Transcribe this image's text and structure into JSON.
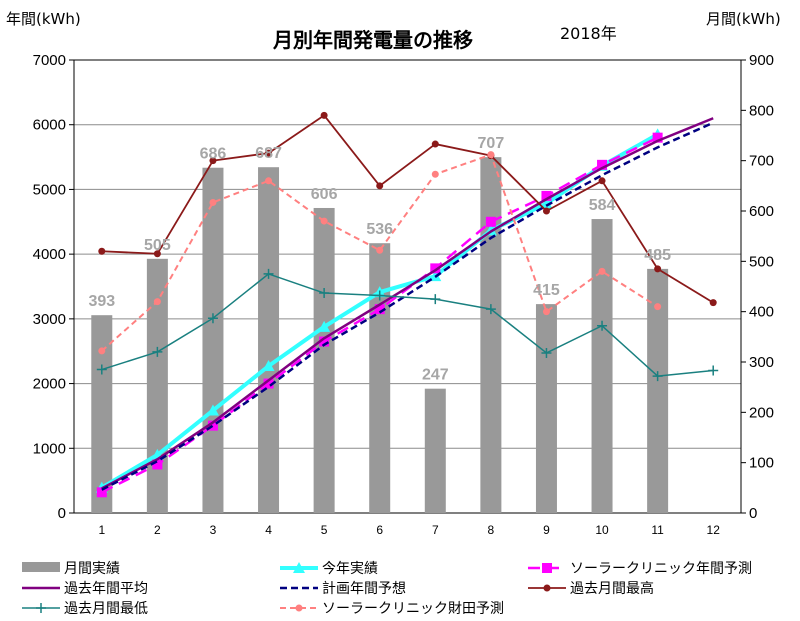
{
  "chart_data": {
    "type": "bar",
    "title": "月別年間発電量の推移",
    "subtitle": "2018年",
    "ylabel_left": "年間(kWh)",
    "ylabel_right": "月間(kWh)",
    "categories": [
      "1",
      "2",
      "3",
      "4",
      "5",
      "6",
      "7",
      "8",
      "9",
      "10",
      "11",
      "12"
    ],
    "y_left": {
      "min": 0,
      "max": 7000,
      "step": 1000
    },
    "y_right": {
      "min": 0,
      "max": 900,
      "step": 100
    },
    "grid": true,
    "legend_position": "bottom",
    "colors": {
      "bar": "#999999",
      "cumulative_actual": "#33ffff",
      "solar_clinic_annual": "#ff00ff",
      "past_annual_avg": "#800080",
      "plan_annual": "#000080",
      "past_monthly_max": "#8b1a1a",
      "past_monthly_min": "#1a8080",
      "solar_clinic_zaita": "#ff8080"
    },
    "series": [
      {
        "name": "月間実績",
        "key": "bar",
        "axis": "right",
        "kind": "bar",
        "values": [
          393,
          505,
          686,
          687,
          606,
          536,
          247,
          707,
          415,
          584,
          485,
          null
        ]
      },
      {
        "name": "今年実績",
        "key": "cumulative_actual",
        "axis": "left",
        "kind": "line-triangle",
        "values": [
          393,
          898,
          1584,
          2271,
          2877,
          3413,
          3660,
          4367,
          4782,
          5366,
          5851,
          null
        ]
      },
      {
        "name": "ソーラークリニック年間予測",
        "key": "solar_clinic_annual",
        "axis": "left",
        "kind": "dash-square",
        "values": [
          320,
          750,
          1350,
          2000,
          2650,
          3150,
          3780,
          4500,
          4900,
          5380,
          5800,
          null
        ]
      },
      {
        "name": "過去年間平均",
        "key": "past_annual_avg",
        "axis": "left",
        "kind": "line",
        "values": [
          380,
          830,
          1400,
          2050,
          2700,
          3220,
          3750,
          4350,
          4850,
          5330,
          5750,
          6100
        ]
      },
      {
        "name": "計画年間予想",
        "key": "plan_annual",
        "axis": "left",
        "kind": "dash",
        "values": [
          360,
          800,
          1350,
          1950,
          2600,
          3100,
          3650,
          4250,
          4750,
          5220,
          5650,
          6030
        ]
      },
      {
        "name": "過去月間最高",
        "key": "past_monthly_max",
        "axis": "right",
        "kind": "line-dot",
        "values": [
          520,
          515,
          700,
          715,
          790,
          650,
          733,
          710,
          600,
          660,
          485,
          418
        ]
      },
      {
        "name": "過去月間最低",
        "key": "past_monthly_min",
        "axis": "right",
        "kind": "line-plus",
        "values": [
          285,
          320,
          387,
          475,
          437,
          432,
          425,
          405,
          318,
          372,
          272,
          283
        ]
      },
      {
        "name": "ソーラークリニック財田予測",
        "key": "solar_clinic_zaita",
        "axis": "right",
        "kind": "dash-dot",
        "values": [
          322,
          420,
          617,
          660,
          580,
          522,
          673,
          712,
          400,
          480,
          410,
          null
        ]
      }
    ]
  }
}
